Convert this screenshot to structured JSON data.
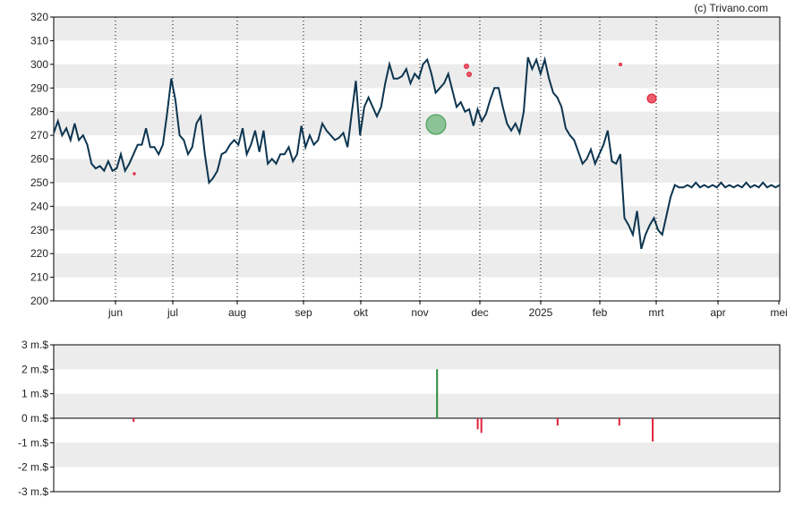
{
  "credit": "(c) Trivano.com",
  "chart_data": [
    {
      "type": "line",
      "yticks": [
        "320",
        "310",
        "300",
        "290",
        "280",
        "270",
        "260",
        "250",
        "240",
        "230",
        "220",
        "210",
        "200"
      ],
      "ylim": [
        200,
        320
      ],
      "xticks": [
        "jun",
        "jul",
        "aug",
        "sep",
        "okt",
        "nov",
        "dec",
        "2025",
        "feb",
        "mrt",
        "apr",
        "mei"
      ],
      "grid": "horizontal-bands",
      "series": [
        {
          "color": "#0d3550",
          "x": [
            0,
            2,
            4,
            6,
            8,
            10,
            12,
            14,
            16,
            18,
            20,
            22,
            24,
            26,
            28,
            30,
            32,
            34,
            36,
            38,
            40,
            42,
            44,
            46,
            48,
            50,
            52,
            54,
            56,
            58,
            60,
            62,
            64,
            66,
            68,
            70,
            72,
            74,
            76,
            78,
            80,
            82,
            84,
            86,
            88,
            90,
            92,
            94,
            96,
            98,
            100,
            102,
            104,
            106,
            108,
            110,
            112,
            114,
            116,
            118,
            120,
            122,
            124,
            126,
            128,
            130,
            132,
            134,
            136,
            138,
            140,
            142,
            144,
            146,
            148,
            150,
            152,
            154,
            156,
            158,
            160,
            162,
            164,
            166,
            168,
            170,
            172,
            174,
            176,
            178,
            180,
            182,
            184,
            186,
            188,
            190,
            192,
            194,
            196,
            198,
            200,
            202,
            204,
            206,
            208,
            210,
            212,
            214,
            216,
            218,
            220,
            222,
            224,
            226,
            228,
            230,
            232,
            234,
            236,
            238,
            240,
            242,
            244,
            246,
            248,
            250,
            252,
            254,
            256,
            258,
            260,
            262,
            264,
            266,
            268,
            270,
            272,
            274,
            276,
            278,
            280,
            282,
            284,
            286,
            288,
            290,
            292,
            294,
            296,
            298,
            300,
            302,
            304,
            306,
            308,
            310,
            312,
            314,
            316,
            318,
            320,
            322,
            324,
            326,
            328,
            330,
            332,
            334,
            336,
            338,
            340,
            342,
            344,
            346
          ],
          "y": [
            271,
            276,
            270,
            273,
            268,
            275,
            268,
            270,
            266,
            258,
            256,
            257,
            255,
            259,
            255,
            256,
            262,
            255,
            258,
            262,
            266,
            266,
            273,
            265,
            265,
            262,
            266,
            279,
            294,
            285,
            270,
            268,
            262,
            265,
            275,
            278,
            262,
            250,
            252,
            255,
            262,
            263,
            266,
            268,
            266,
            273,
            262,
            266,
            272,
            263,
            272,
            258,
            260,
            258,
            262,
            262,
            265,
            259,
            262,
            274,
            265,
            270,
            266,
            268,
            275,
            272,
            270,
            268,
            269,
            271,
            265,
            279,
            293,
            270,
            282,
            286,
            282,
            278,
            282,
            292,
            300,
            294,
            294,
            295,
            298,
            292,
            296,
            294,
            300,
            302,
            296,
            288,
            290,
            292,
            296,
            289,
            282,
            284,
            280,
            281,
            274,
            281,
            276,
            279,
            285,
            290,
            290,
            282,
            275,
            272,
            275,
            271,
            280,
            303,
            298,
            302,
            296,
            302,
            294,
            288,
            286,
            282,
            273,
            270,
            268,
            263,
            258,
            260,
            264,
            258,
            262,
            266,
            272,
            259,
            258,
            262,
            235,
            232,
            228,
            238,
            222,
            228,
            232,
            235,
            230,
            228,
            236,
            244,
            249,
            248,
            248,
            249,
            248,
            250,
            248,
            249,
            248,
            249,
            248,
            250,
            248,
            249,
            248,
            249,
            248,
            250,
            248,
            249,
            248,
            250,
            248,
            249,
            248,
            249
          ]
        }
      ]
    },
    {
      "type": "bar",
      "yticks": [
        "3 m.$",
        "2 m.$",
        "1 m.$",
        "0 m.$",
        "-1 m.$",
        "-2 m.$",
        "-3 m.$"
      ],
      "ylim": [
        -3,
        3
      ],
      "series": [
        {
          "colors": {
            "positive": "#2e8b3e",
            "negative": "#e0203a"
          },
          "bars": [
            {
              "pos": 0.11,
              "value": -0.15
            },
            {
              "pos": 0.528,
              "value": 2.0
            },
            {
              "pos": 0.584,
              "value": -0.45
            },
            {
              "pos": 0.589,
              "value": -0.6
            },
            {
              "pos": 0.694,
              "value": -0.3
            },
            {
              "pos": 0.779,
              "value": -0.3
            },
            {
              "pos": 0.825,
              "value": -0.95
            }
          ]
        }
      ]
    }
  ]
}
